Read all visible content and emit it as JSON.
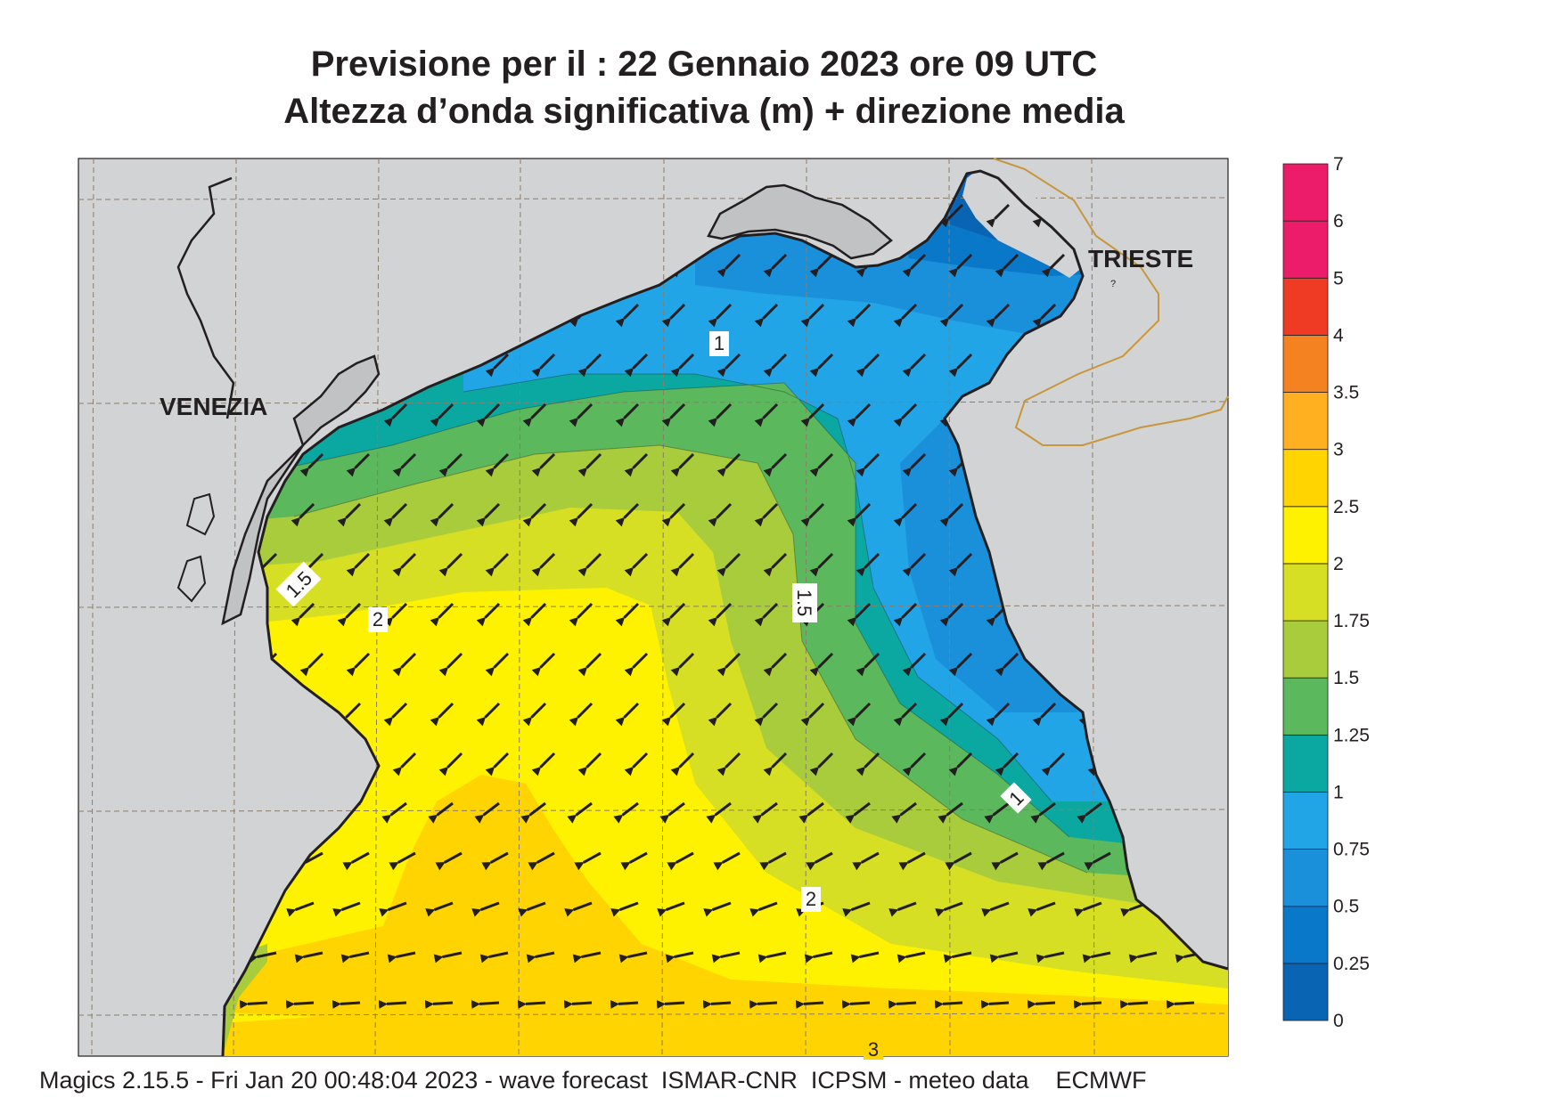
{
  "header": {
    "title_line1": "Previsione per il  :  22  Gennaio  2023   ore 09 UTC",
    "title_line2": "Altezza d’onda significativa (m) + direzione media"
  },
  "map": {
    "cities": [
      {
        "name": "VENEZIA"
      },
      {
        "name": "TRIESTE"
      }
    ],
    "contour_labels": [
      "1",
      "1",
      "1.5",
      "1.5",
      "2",
      "2",
      "3"
    ],
    "wave_direction": "from north-east (arrows pointing south-west, turning west in the south)"
  },
  "legend": {
    "ticks": [
      "0",
      "0.25",
      "0.5",
      "0.75",
      "1",
      "1.25",
      "1.5",
      "1.75",
      "2",
      "2.5",
      "3",
      "3.5",
      "4",
      "5",
      "6",
      "7"
    ],
    "colors": [
      "#0a64b4",
      "#0a78c8",
      "#1a8fda",
      "#22a5e6",
      "#0aa8a0",
      "#5cb85c",
      "#a8cc3c",
      "#d6df24",
      "#fff200",
      "#ffd400",
      "#ffb020",
      "#f58220",
      "#ef3b24",
      "#ec1c6a",
      "#ec1c6a"
    ]
  },
  "footer": {
    "text": "Magics 2.15.5 - Fri Jan 20 00:48:04 2023 - wave forecast  ISMAR-CNR  ICPSM - meteo data    ECMWF"
  }
}
